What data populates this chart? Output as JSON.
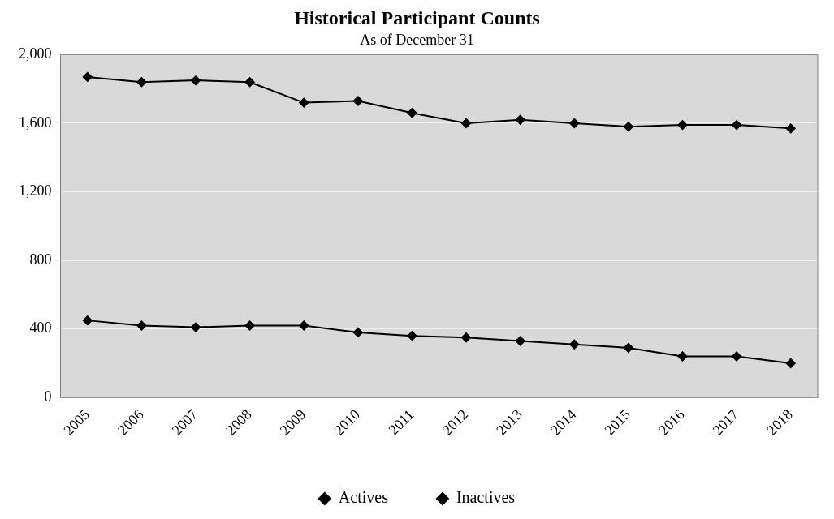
{
  "chart_data": {
    "type": "line",
    "title": "Historical Participant Counts",
    "subtitle": "As of December 31",
    "categories": [
      "2005",
      "2006",
      "2007",
      "2008",
      "2009",
      "2010",
      "2011",
      "2012",
      "2013",
      "2014",
      "2015",
      "2016",
      "2017",
      "2018"
    ],
    "series": [
      {
        "name": "Actives",
        "color": "#000000",
        "values": [
          1870,
          1840,
          1850,
          1840,
          1720,
          1730,
          1660,
          1600,
          1620,
          1600,
          1580,
          1590,
          1590,
          1570
        ]
      },
      {
        "name": "Inactives",
        "color": "#000000",
        "values": [
          450,
          420,
          410,
          420,
          420,
          380,
          360,
          350,
          330,
          310,
          290,
          240,
          240,
          200
        ]
      }
    ],
    "ylim": [
      0,
      2000
    ],
    "yticks": [
      {
        "value": 0,
        "label": "0"
      },
      {
        "value": 400,
        "label": "400"
      },
      {
        "value": 800,
        "label": "800"
      },
      {
        "value": 1200,
        "label": "1,200"
      },
      {
        "value": 1600,
        "label": "1,600"
      },
      {
        "value": 2000,
        "label": "2,000"
      }
    ],
    "grid": "y",
    "legend": "bottom",
    "marker": "diamond",
    "line_style": "solid"
  }
}
